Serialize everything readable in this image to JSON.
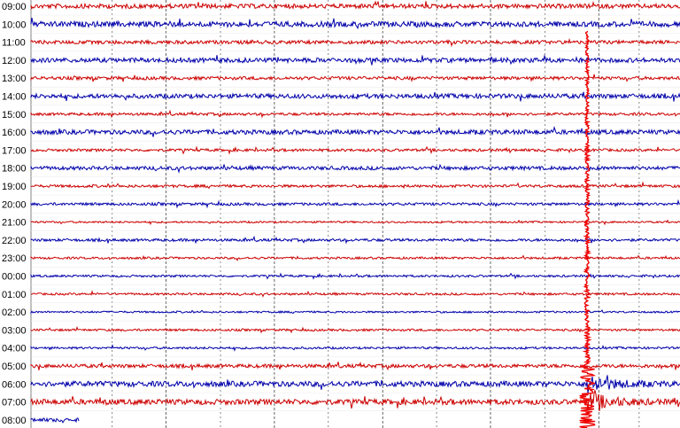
{
  "chart_data": {
    "type": "line",
    "title": "",
    "xlabel": "",
    "ylabel": "",
    "grid": true,
    "hours": [
      "09:00",
      "10:00",
      "11:00",
      "12:00",
      "13:00",
      "14:00",
      "15:00",
      "16:00",
      "17:00",
      "18:00",
      "19:00",
      "20:00",
      "21:00",
      "22:00",
      "23:00",
      "00:00",
      "01:00",
      "02:00",
      "03:00",
      "04:00",
      "05:00",
      "06:00",
      "07:00",
      "08:00"
    ],
    "trace_colors": [
      "#cc0000",
      "#0000aa",
      "#cc0000",
      "#0000aa",
      "#cc0000",
      "#0000aa",
      "#cc0000",
      "#0000aa",
      "#cc0000",
      "#0000aa",
      "#cc0000",
      "#0000aa",
      "#cc0000",
      "#0000aa",
      "#cc0000",
      "#0000aa",
      "#cc0000",
      "#0000aa",
      "#cc0000",
      "#0000aa",
      "#cc0000",
      "#0000aa",
      "#cc0000",
      "#0000aa"
    ],
    "trace_noise": [
      2.5,
      3,
      2,
      2.5,
      1.8,
      2.5,
      1.5,
      2.5,
      1.5,
      2,
      1.5,
      1.5,
      1,
      1.5,
      1.2,
      1.2,
      1.2,
      1,
      1.2,
      1.2,
      2,
      3,
      3,
      2
    ],
    "partial_last_trace_fraction": 0.075,
    "event": {
      "time_fraction": 0.857,
      "start_hour": "11:00",
      "peak_hour": "06:00",
      "end_hour": "07:00",
      "color": "#ee0000"
    },
    "minor_gridline_fractions": [
      0.125,
      0.292,
      0.458,
      0.625,
      0.792,
      0.937
    ],
    "major_gridline_fractions": [
      0.208,
      0.375,
      0.542,
      0.708,
      0.875
    ]
  }
}
